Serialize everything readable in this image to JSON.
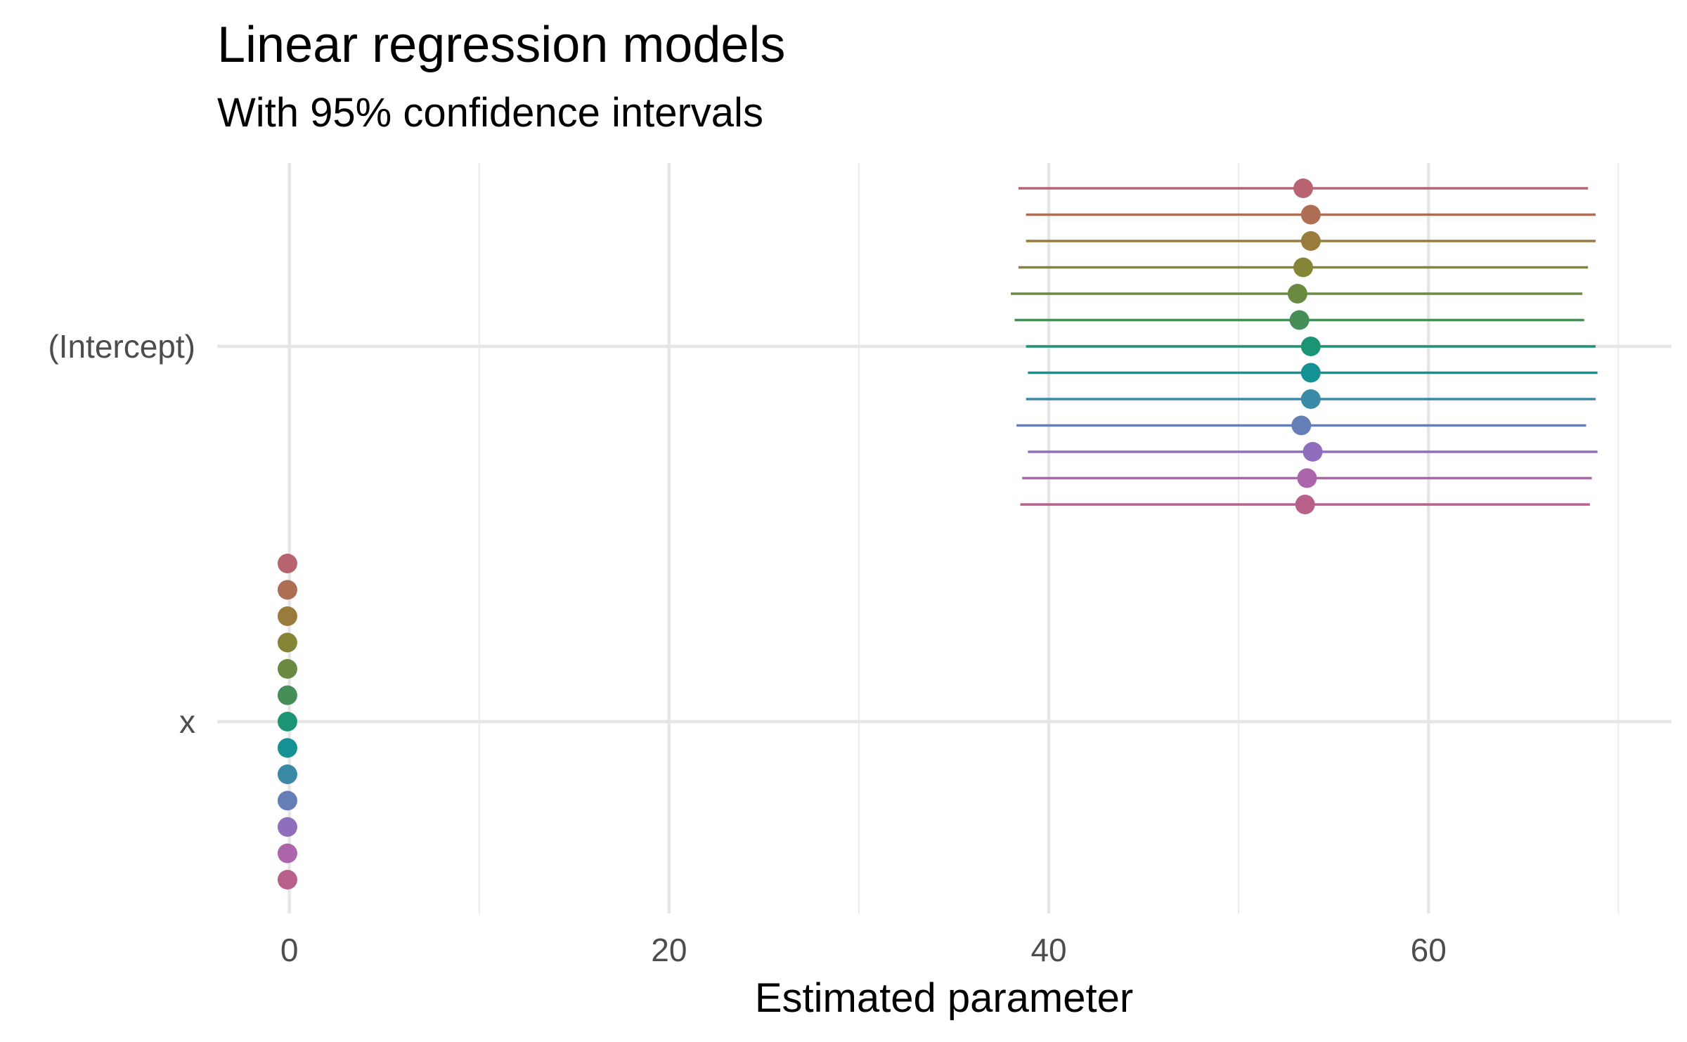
{
  "chart_data": {
    "type": "scatter",
    "title": "Linear regression models",
    "subtitle": "With 95% confidence intervals",
    "xlabel": "Estimated parameter",
    "ylabel": "",
    "xlim": [
      -3.8,
      72.8
    ],
    "x_ticks": [
      0,
      20,
      40,
      60
    ],
    "grid": true,
    "categories": [
      "(Intercept)",
      "x"
    ],
    "models": [
      {
        "color": "#B85F8A",
        "estimates": [
          {
            "term": "(Intercept)",
            "estimate": 53.5,
            "lower": 38.5,
            "upper": 68.5
          },
          {
            "term": "x",
            "estimate": -0.1
          }
        ]
      },
      {
        "color": "#AC65AB",
        "estimates": [
          {
            "term": "(Intercept)",
            "estimate": 53.6,
            "lower": 38.6,
            "upper": 68.6
          },
          {
            "term": "x",
            "estimate": -0.1
          }
        ]
      },
      {
        "color": "#8F6EBD",
        "estimates": [
          {
            "term": "(Intercept)",
            "estimate": 53.9,
            "lower": 38.9,
            "upper": 68.9
          },
          {
            "term": "x",
            "estimate": -0.1
          }
        ]
      },
      {
        "color": "#657EB8",
        "estimates": [
          {
            "term": "(Intercept)",
            "estimate": 53.3,
            "lower": 38.3,
            "upper": 68.3
          },
          {
            "term": "x",
            "estimate": -0.1
          }
        ]
      },
      {
        "color": "#3A89A6",
        "estimates": [
          {
            "term": "(Intercept)",
            "estimate": 53.8,
            "lower": 38.8,
            "upper": 68.8
          },
          {
            "term": "x",
            "estimate": -0.1
          }
        ]
      },
      {
        "color": "#149193",
        "estimates": [
          {
            "term": "(Intercept)",
            "estimate": 53.8,
            "lower": 38.9,
            "upper": 68.9
          },
          {
            "term": "x",
            "estimate": -0.1
          }
        ]
      },
      {
        "color": "#1B9473",
        "estimates": [
          {
            "term": "(Intercept)",
            "estimate": 53.8,
            "lower": 38.8,
            "upper": 68.8
          },
          {
            "term": "x",
            "estimate": -0.1
          }
        ]
      },
      {
        "color": "#468E58",
        "estimates": [
          {
            "term": "(Intercept)",
            "estimate": 53.2,
            "lower": 38.2,
            "upper": 68.2
          },
          {
            "term": "x",
            "estimate": -0.1
          }
        ]
      },
      {
        "color": "#6A8A42",
        "estimates": [
          {
            "term": "(Intercept)",
            "estimate": 53.1,
            "lower": 38.0,
            "upper": 68.1
          },
          {
            "term": "x",
            "estimate": -0.1
          }
        ]
      },
      {
        "color": "#858537",
        "estimates": [
          {
            "term": "(Intercept)",
            "estimate": 53.4,
            "lower": 38.4,
            "upper": 68.4
          },
          {
            "term": "x",
            "estimate": -0.1
          }
        ]
      },
      {
        "color": "#9A7B3C",
        "estimates": [
          {
            "term": "(Intercept)",
            "estimate": 53.8,
            "lower": 38.8,
            "upper": 68.8
          },
          {
            "term": "x",
            "estimate": -0.1
          }
        ]
      },
      {
        "color": "#AD6E53",
        "estimates": [
          {
            "term": "(Intercept)",
            "estimate": 53.8,
            "lower": 38.8,
            "upper": 68.8
          },
          {
            "term": "x",
            "estimate": -0.1
          }
        ]
      },
      {
        "color": "#B76370",
        "estimates": [
          {
            "term": "(Intercept)",
            "estimate": 53.4,
            "lower": 38.4,
            "upper": 68.4
          },
          {
            "term": "x",
            "estimate": -0.1
          }
        ]
      }
    ]
  }
}
